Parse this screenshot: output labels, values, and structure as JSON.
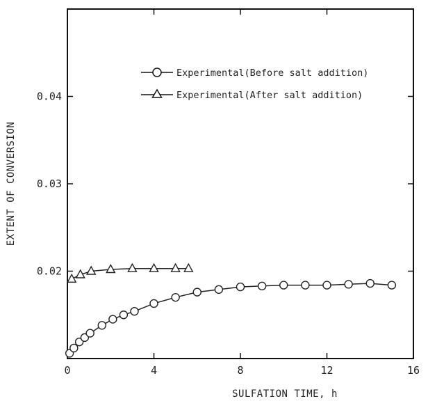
{
  "chart_data": {
    "type": "line",
    "title": "",
    "xlabel": "SULFATION TIME, h",
    "ylabel": "EXTENT OF CONVERSION",
    "xlim": [
      0,
      16
    ],
    "ylim": [
      0.01,
      0.05
    ],
    "x_ticks": [
      0,
      4,
      8,
      12,
      16
    ],
    "y_ticks": [
      0.02,
      0.03,
      0.04
    ],
    "x_tick_labels": [
      "0",
      "4",
      "8",
      "12",
      "16"
    ],
    "y_tick_labels": [
      "0.02",
      "0.03",
      "0.04"
    ],
    "grid": false,
    "legend_position": "top-right",
    "series": [
      {
        "name": "Experimental(Before salt addition)",
        "marker": "circle",
        "color": "#222222",
        "x": [
          0.1,
          0.3,
          0.55,
          0.8,
          1.05,
          1.6,
          2.1,
          2.6,
          3.1,
          4.0,
          5.0,
          6.0,
          7.0,
          8.0,
          9.0,
          10.0,
          11.0,
          12.0,
          13.0,
          14.0,
          15.0
        ],
        "y": [
          0.0106,
          0.0112,
          0.0119,
          0.0124,
          0.0129,
          0.0138,
          0.0145,
          0.015,
          0.0154,
          0.0163,
          0.017,
          0.0176,
          0.0179,
          0.0182,
          0.0183,
          0.0184,
          0.0184,
          0.0184,
          0.0185,
          0.0186,
          0.0184
        ]
      },
      {
        "name": "Experimental(After salt addition)",
        "marker": "triangle",
        "color": "#222222",
        "x": [
          0.2,
          0.6,
          1.1,
          2.0,
          3.0,
          4.0,
          5.0,
          5.6
        ],
        "y": [
          0.0191,
          0.0196,
          0.02,
          0.0202,
          0.0203,
          0.0203,
          0.0203,
          0.0203
        ]
      }
    ]
  }
}
